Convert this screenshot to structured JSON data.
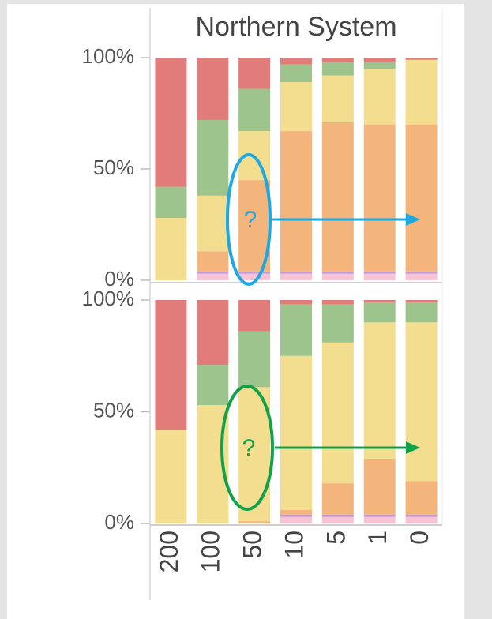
{
  "chart_data": [
    {
      "type": "bar",
      "stacked": true,
      "title": "Northern System",
      "ylim": [
        0,
        100
      ],
      "yticks": [
        {
          "value": 0,
          "label": "0%"
        },
        {
          "value": 50,
          "label": "50%"
        },
        {
          "value": 100,
          "label": "100%"
        }
      ],
      "annotation": {
        "text": "?",
        "color": "#1ea7e0"
      },
      "series": [
        {
          "color": "#f7c3d3",
          "values": [
            0,
            3,
            3,
            3,
            3,
            3,
            3
          ]
        },
        {
          "color": "#c49ad0",
          "values": [
            0,
            1,
            1,
            1,
            1,
            1,
            1
          ]
        },
        {
          "color": "#f4b57c",
          "values": [
            0,
            9,
            41,
            63,
            67,
            66,
            66
          ]
        },
        {
          "color": "#f2de8e",
          "values": [
            28,
            25,
            22,
            22,
            21,
            25,
            29
          ]
        },
        {
          "color": "#9dc48d",
          "values": [
            14,
            34,
            19,
            8,
            6,
            3,
            0
          ]
        },
        {
          "color": "#e27c7a",
          "values": [
            58,
            28,
            14,
            3,
            2,
            2,
            1
          ]
        }
      ]
    },
    {
      "type": "bar",
      "stacked": true,
      "categories": [
        "200",
        "100",
        "50",
        "10",
        "5",
        "1",
        "0"
      ],
      "ylim": [
        0,
        100
      ],
      "yticks": [
        {
          "value": 0,
          "label": "0%"
        },
        {
          "value": 50,
          "label": "50%"
        },
        {
          "value": 100,
          "label": "100%"
        }
      ],
      "annotation": {
        "text": "?",
        "color": "#12a04a"
      },
      "series": [
        {
          "color": "#f7c3d3",
          "values": [
            0,
            0,
            0,
            3,
            3,
            3,
            3
          ]
        },
        {
          "color": "#c49ad0",
          "values": [
            0,
            0,
            0,
            1,
            1,
            1,
            1
          ]
        },
        {
          "color": "#f4b57c",
          "values": [
            0,
            0,
            1,
            2,
            14,
            25,
            15
          ]
        },
        {
          "color": "#f2de8e",
          "values": [
            42,
            53,
            60,
            69,
            63,
            61,
            71
          ]
        },
        {
          "color": "#9dc48d",
          "values": [
            0,
            18,
            25,
            23,
            17,
            9,
            9
          ]
        },
        {
          "color": "#e27c7a",
          "values": [
            58,
            29,
            14,
            2,
            2,
            1,
            1
          ]
        }
      ]
    }
  ]
}
